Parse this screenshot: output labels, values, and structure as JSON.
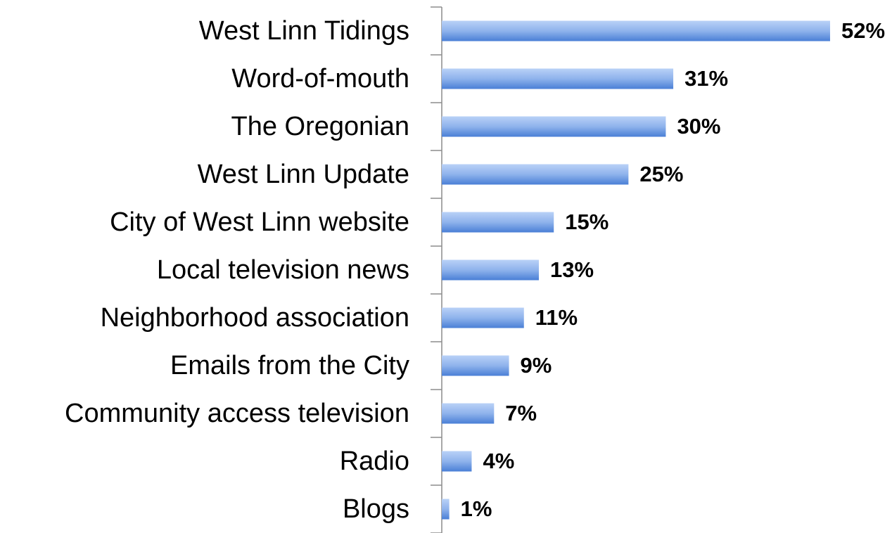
{
  "chart_data": {
    "type": "bar",
    "orientation": "horizontal",
    "categories": [
      "West Linn Tidings",
      "Word-of-mouth",
      "The Oregonian",
      "West Linn Update",
      "City of West Linn website",
      "Local television news",
      "Neighborhood association",
      "Emails from the City",
      "Community access television",
      "Radio",
      "Blogs"
    ],
    "values": [
      52,
      31,
      30,
      25,
      15,
      13,
      11,
      9,
      7,
      4,
      1
    ],
    "value_labels": [
      "52%",
      "31%",
      "30%",
      "25%",
      "15%",
      "13%",
      "11%",
      "9%",
      "7%",
      "4%",
      "1%"
    ],
    "color": "#4a7fd6"
  }
}
